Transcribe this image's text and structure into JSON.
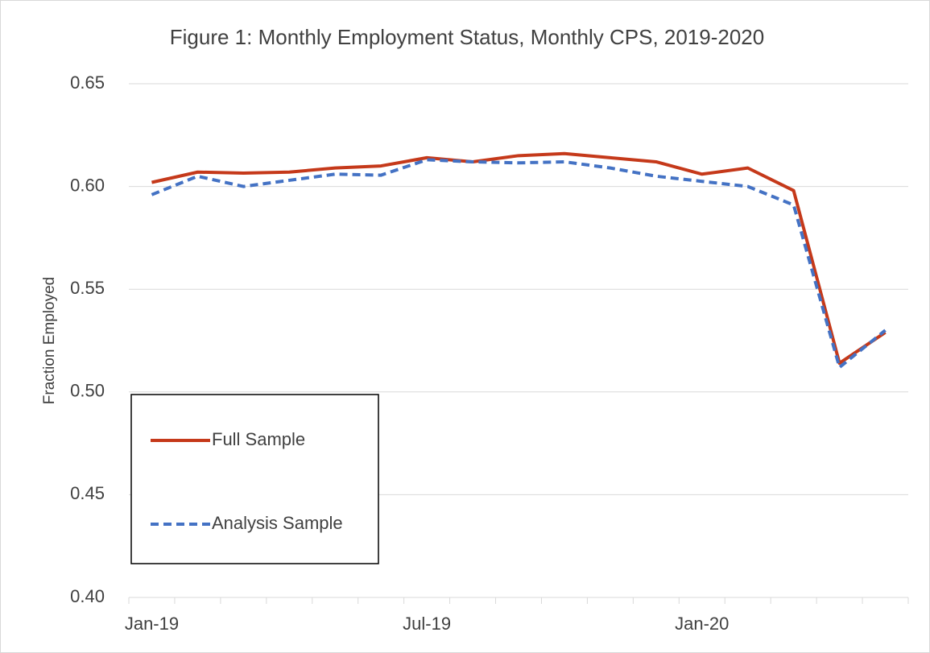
{
  "chart_data": {
    "type": "line",
    "title": "Figure 1: Monthly Employment Status, Monthly CPS, 2019-2020",
    "y_label": "Fraction Employed",
    "categories": [
      "Jan-19",
      null,
      null,
      null,
      null,
      null,
      "Jul-19",
      null,
      null,
      null,
      null,
      null,
      "Jan-20",
      null,
      null,
      null,
      null
    ],
    "series": [
      {
        "name": "Full Sample",
        "color": "#c5391a",
        "style": "solid",
        "values": [
          0.602,
          0.607,
          0.6065,
          0.607,
          0.609,
          0.61,
          0.614,
          0.612,
          0.615,
          0.616,
          0.614,
          0.612,
          0.606,
          0.609,
          0.598,
          0.514,
          0.529
        ]
      },
      {
        "name": "Analysis Sample",
        "color": "#4472c4",
        "style": "dashed",
        "values": [
          0.596,
          0.605,
          0.6,
          0.603,
          0.606,
          0.6055,
          0.613,
          0.612,
          0.6115,
          0.612,
          0.609,
          0.605,
          0.6025,
          0.6,
          0.591,
          0.512,
          0.53
        ]
      }
    ],
    "ylim": [
      0.4,
      0.65
    ],
    "yticks": [
      {
        "value": 0.4,
        "label": "0.40"
      },
      {
        "value": 0.45,
        "label": "0.45"
      },
      {
        "value": 0.5,
        "label": "0.50"
      },
      {
        "value": 0.55,
        "label": "0.55"
      },
      {
        "value": 0.6,
        "label": "0.60"
      },
      {
        "value": 0.65,
        "label": "0.65"
      }
    ],
    "grid": true,
    "legend": "lower left"
  }
}
